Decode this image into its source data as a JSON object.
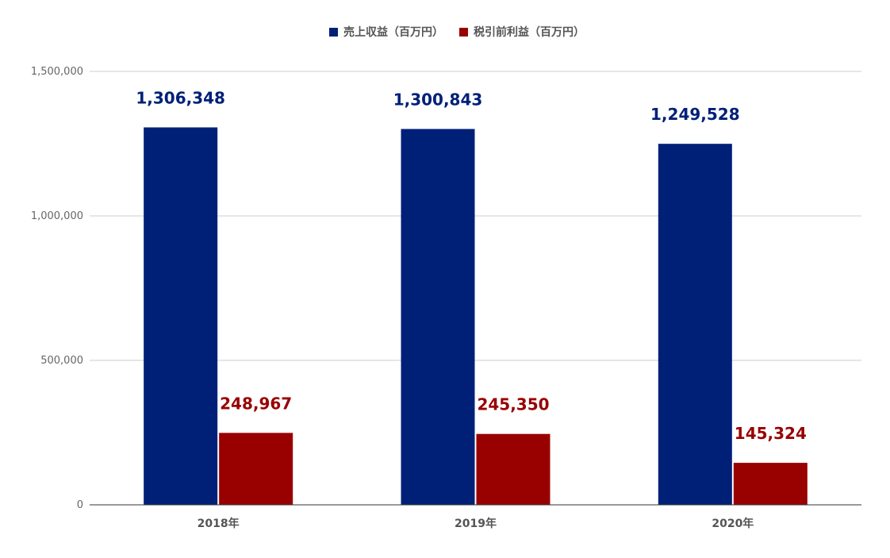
{
  "chart_data": {
    "type": "bar",
    "title": "",
    "xlabel": "",
    "ylabel": "",
    "categories": [
      "2018年",
      "2019年",
      "2020年"
    ],
    "series": [
      {
        "name": "売上収益（百万円）",
        "color": "#002078",
        "values": [
          1306348,
          1300843,
          1249528
        ],
        "labels": [
          "1,306,348",
          "1,300,843",
          "1,249,528"
        ]
      },
      {
        "name": "税引前利益（百万円）",
        "color": "#990000",
        "values": [
          248967,
          245350,
          145324
        ],
        "labels": [
          "248,967",
          "245,350",
          "145,324"
        ]
      }
    ],
    "ylim": [
      0,
      1500000
    ],
    "yticks": [
      0,
      500000,
      1000000,
      1500000
    ],
    "ytick_labels": [
      "0",
      "500,000",
      "1,000,000",
      "1,500,000"
    ],
    "grid": true,
    "legend_position": "top-center"
  }
}
